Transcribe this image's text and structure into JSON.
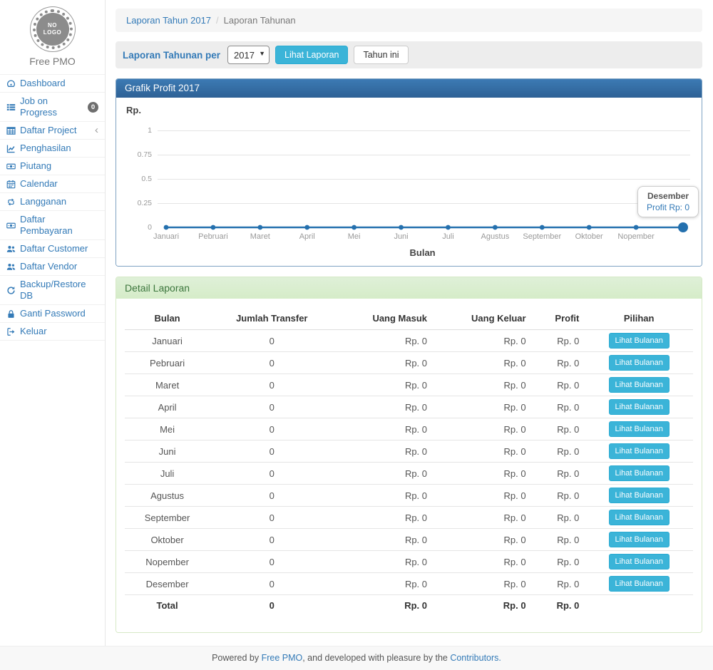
{
  "app": {
    "brand": "Free PMO",
    "logo_line1": "NO",
    "logo_line2": "LOGO"
  },
  "sidebar": {
    "items": [
      {
        "label": "Dashboard",
        "icon": "dashboard-icon"
      },
      {
        "label": "Job on Progress",
        "icon": "list-icon",
        "badge": "0"
      },
      {
        "label": "Daftar Project",
        "icon": "table-icon",
        "chevron": "‹"
      },
      {
        "label": "Penghasilan",
        "icon": "line-chart-icon"
      },
      {
        "label": "Piutang",
        "icon": "money-icon"
      },
      {
        "label": "Calendar",
        "icon": "calendar-icon"
      },
      {
        "label": "Langganan",
        "icon": "retweet-icon"
      },
      {
        "label": "Daftar Pembayaran",
        "icon": "money-icon"
      },
      {
        "label": "Daftar Customer",
        "icon": "users-icon"
      },
      {
        "label": "Daftar Vendor",
        "icon": "users-icon"
      },
      {
        "label": "Backup/Restore DB",
        "icon": "refresh-icon"
      },
      {
        "label": "Ganti Password",
        "icon": "lock-icon"
      },
      {
        "label": "Keluar",
        "icon": "sign-out-icon"
      }
    ]
  },
  "breadcrumb": {
    "link": "Laporan Tahun 2017",
    "separator": "/",
    "current": "Laporan Tahunan"
  },
  "filter": {
    "label": "Laporan Tahunan per",
    "year_value": "2017",
    "submit_label": "Lihat Laporan",
    "this_year_label": "Tahun ini"
  },
  "chart_data": {
    "type": "line",
    "title": "Grafik Profit 2017",
    "ylabel": "Rp.",
    "xlabel": "Bulan",
    "categories": [
      "Januari",
      "Pebruari",
      "Maret",
      "April",
      "Mei",
      "Juni",
      "Juli",
      "Agustus",
      "September",
      "Oktober",
      "Nopember",
      "Desember"
    ],
    "series": [
      {
        "name": "Profit",
        "values": [
          0,
          0,
          0,
          0,
          0,
          0,
          0,
          0,
          0,
          0,
          0,
          0
        ]
      }
    ],
    "yticks": [
      0,
      0.25,
      0.5,
      0.75,
      1
    ],
    "ylim": [
      0,
      1
    ],
    "grid": true,
    "legend": false,
    "hidden_x_label_index": 11,
    "highlighted_point": {
      "index": 11,
      "tooltip_title": "Desember",
      "tooltip_value": "Profit Rp: 0"
    },
    "line_color": "#2470ae"
  },
  "report": {
    "title": "Detail Laporan",
    "table": {
      "headers": [
        "Bulan",
        "Jumlah Transfer",
        "Uang Masuk",
        "Uang Keluar",
        "Profit",
        "Pilihan"
      ],
      "action_label": "Lihat Bulanan",
      "rows": [
        {
          "bulan": "Januari",
          "jumlah_transfer": "0",
          "uang_masuk": "Rp. 0",
          "uang_keluar": "Rp. 0",
          "profit": "Rp. 0"
        },
        {
          "bulan": "Pebruari",
          "jumlah_transfer": "0",
          "uang_masuk": "Rp. 0",
          "uang_keluar": "Rp. 0",
          "profit": "Rp. 0"
        },
        {
          "bulan": "Maret",
          "jumlah_transfer": "0",
          "uang_masuk": "Rp. 0",
          "uang_keluar": "Rp. 0",
          "profit": "Rp. 0"
        },
        {
          "bulan": "April",
          "jumlah_transfer": "0",
          "uang_masuk": "Rp. 0",
          "uang_keluar": "Rp. 0",
          "profit": "Rp. 0"
        },
        {
          "bulan": "Mei",
          "jumlah_transfer": "0",
          "uang_masuk": "Rp. 0",
          "uang_keluar": "Rp. 0",
          "profit": "Rp. 0"
        },
        {
          "bulan": "Juni",
          "jumlah_transfer": "0",
          "uang_masuk": "Rp. 0",
          "uang_keluar": "Rp. 0",
          "profit": "Rp. 0"
        },
        {
          "bulan": "Juli",
          "jumlah_transfer": "0",
          "uang_masuk": "Rp. 0",
          "uang_keluar": "Rp. 0",
          "profit": "Rp. 0"
        },
        {
          "bulan": "Agustus",
          "jumlah_transfer": "0",
          "uang_masuk": "Rp. 0",
          "uang_keluar": "Rp. 0",
          "profit": "Rp. 0"
        },
        {
          "bulan": "September",
          "jumlah_transfer": "0",
          "uang_masuk": "Rp. 0",
          "uang_keluar": "Rp. 0",
          "profit": "Rp. 0"
        },
        {
          "bulan": "Oktober",
          "jumlah_transfer": "0",
          "uang_masuk": "Rp. 0",
          "uang_keluar": "Rp. 0",
          "profit": "Rp. 0"
        },
        {
          "bulan": "Nopember",
          "jumlah_transfer": "0",
          "uang_masuk": "Rp. 0",
          "uang_keluar": "Rp. 0",
          "profit": "Rp. 0"
        },
        {
          "bulan": "Desember",
          "jumlah_transfer": "0",
          "uang_masuk": "Rp. 0",
          "uang_keluar": "Rp. 0",
          "profit": "Rp. 0"
        }
      ],
      "total": {
        "label": "Total",
        "jumlah_transfer": "0",
        "uang_masuk": "Rp. 0",
        "uang_keluar": "Rp. 0",
        "profit": "Rp. 0"
      }
    }
  },
  "footer": {
    "prefix": "Powered by ",
    "link1": "Free PMO",
    "middle": ", and developed with pleasure by the ",
    "link2": "Contributors."
  },
  "colors": {
    "accent": "#337ab7",
    "info_button": "#3bb4d8",
    "chart_header": "#31669b",
    "success_header_bg": "#dff0d8",
    "success_header_text": "#3c763d",
    "chart_line": "#2470ae"
  }
}
